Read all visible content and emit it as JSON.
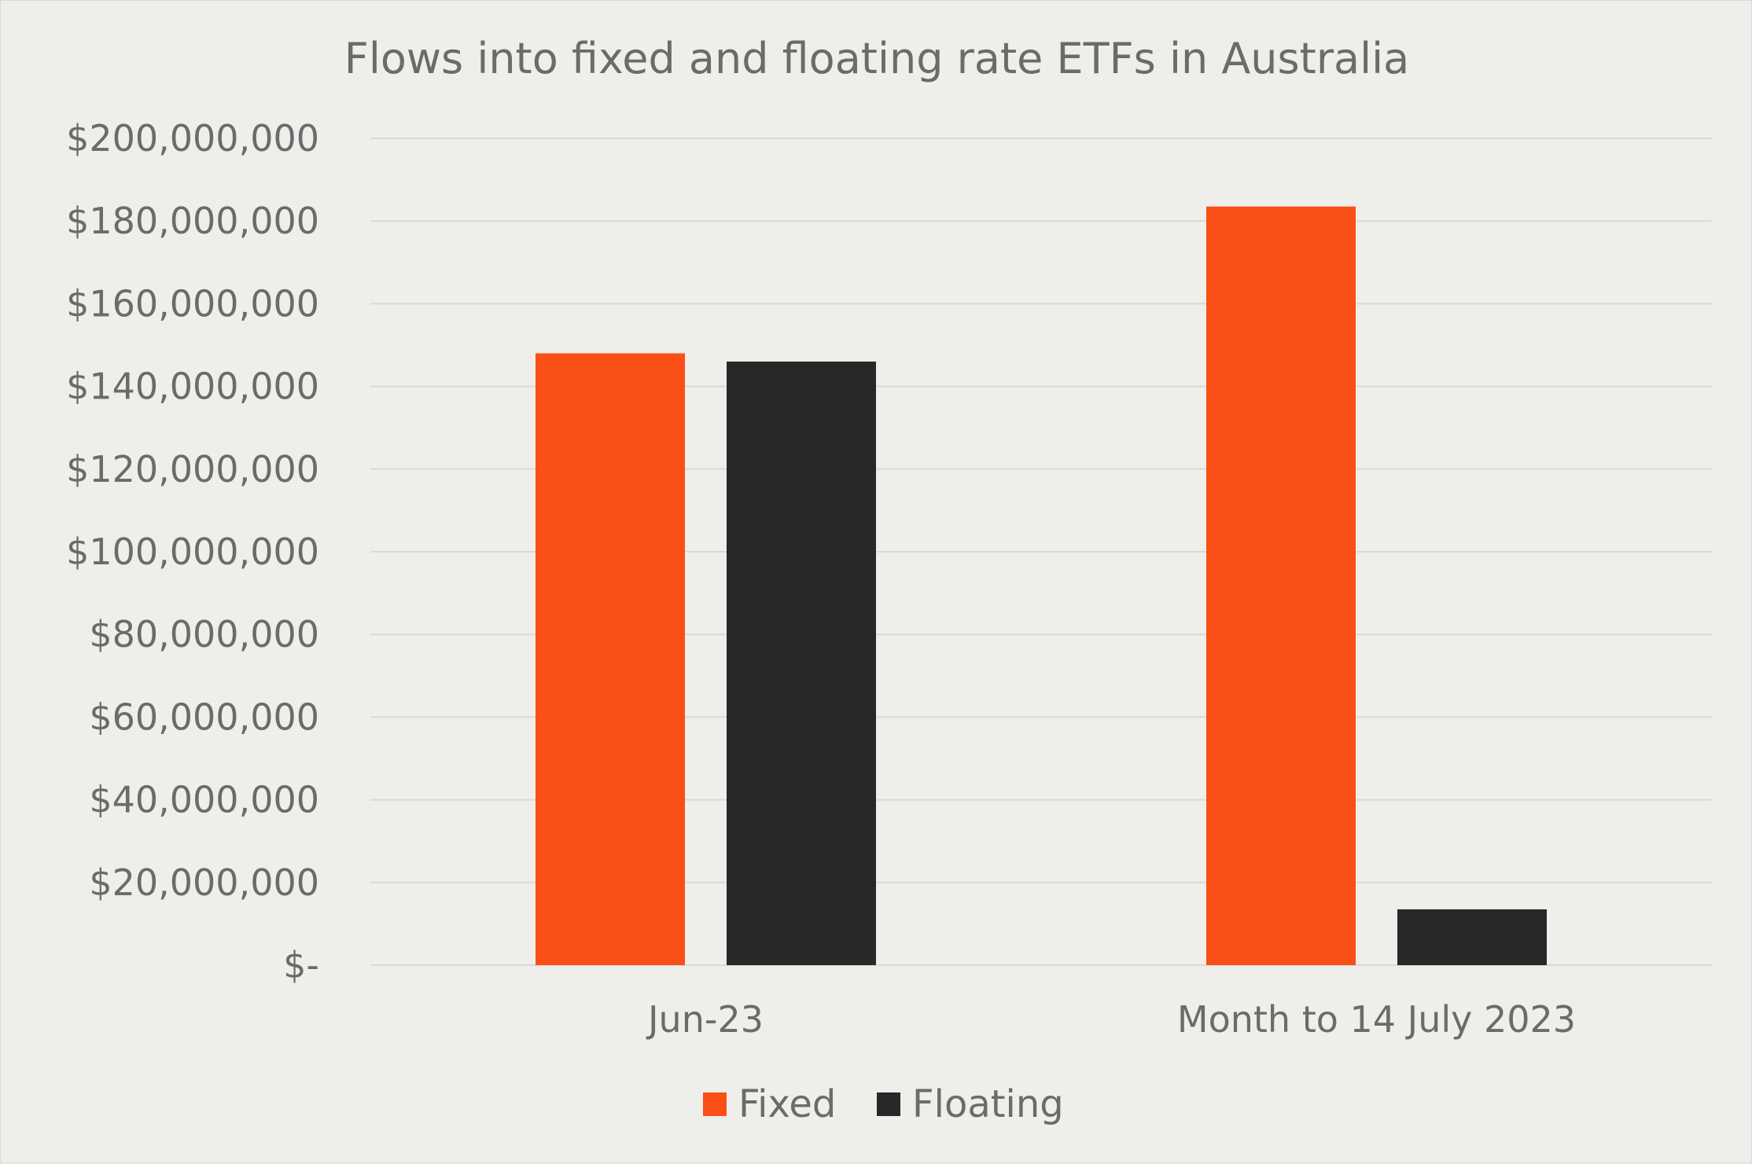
{
  "chart_data": {
    "type": "bar",
    "title": "Flows into fixed and floating rate ETFs in Australia",
    "categories": [
      "Jun-23",
      "Month to 14 July 2023"
    ],
    "series": [
      {
        "name": "Fixed",
        "color": "#fa4f17",
        "values": [
          148000000,
          183500000
        ]
      },
      {
        "name": "Floating",
        "color": "#282828",
        "values": [
          146000000,
          13500000
        ]
      }
    ],
    "ylim": [
      0,
      200000000
    ],
    "yticks": [
      0,
      20000000,
      40000000,
      60000000,
      80000000,
      100000000,
      120000000,
      140000000,
      160000000,
      180000000,
      200000000
    ],
    "ytick_labels": [
      "$-",
      "$20,000,000",
      "$40,000,000",
      "$60,000,000",
      "$80,000,000",
      "$100,000,000",
      "$120,000,000",
      "$140,000,000",
      "$160,000,000",
      "$180,000,000",
      "$200,000,000"
    ],
    "grid": true,
    "legend_position": "bottom",
    "xlabel": "",
    "ylabel": ""
  }
}
